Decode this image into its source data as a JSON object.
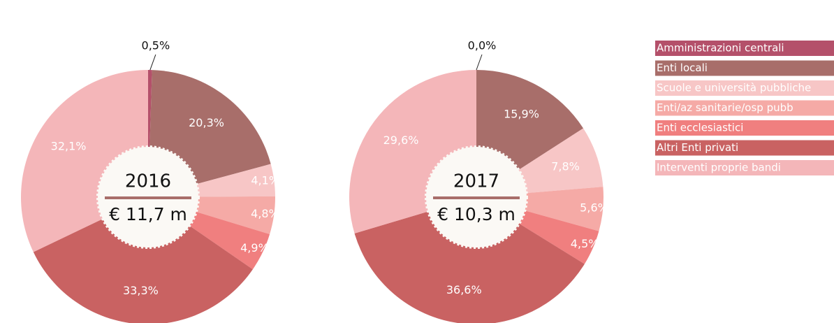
{
  "legend": [
    {
      "name": "Amministrazioni centrali",
      "color": "#b4506a"
    },
    {
      "name": "Enti locali",
      "color": "#a86e6a"
    },
    {
      "name": "Scuole e università pubbliche",
      "color": "#f7c6c6"
    },
    {
      "name": "Enti/az sanitarie/osp pubb",
      "color": "#f5aaa6"
    },
    {
      "name": "Enti ecclesiastici",
      "color": "#f07f7f"
    },
    {
      "name": "Altri Enti privati",
      "color": "#c96262"
    },
    {
      "name": "Interventi proprie bandi",
      "color": "#f4b6b9"
    }
  ],
  "chart_data": [
    {
      "type": "pie",
      "title": "2016",
      "subtitle": "€ 11,7 m",
      "values": [
        0.5,
        20.3,
        4.1,
        4.8,
        4.9,
        33.3,
        32.1
      ],
      "value_labels": [
        "0,5%",
        "20,3%",
        "4,1%",
        "4,8%",
        "4,9%",
        "33,3%",
        "32,1%"
      ]
    },
    {
      "type": "pie",
      "title": "2017",
      "subtitle": "€ 10,3 m",
      "values": [
        0.0,
        15.9,
        7.8,
        5.6,
        4.5,
        36.6,
        29.6
      ],
      "value_labels": [
        "0,0%",
        "15,9%",
        "7,8%",
        "5,6%",
        "4,5%",
        "36,6%",
        "29,6%"
      ]
    }
  ]
}
